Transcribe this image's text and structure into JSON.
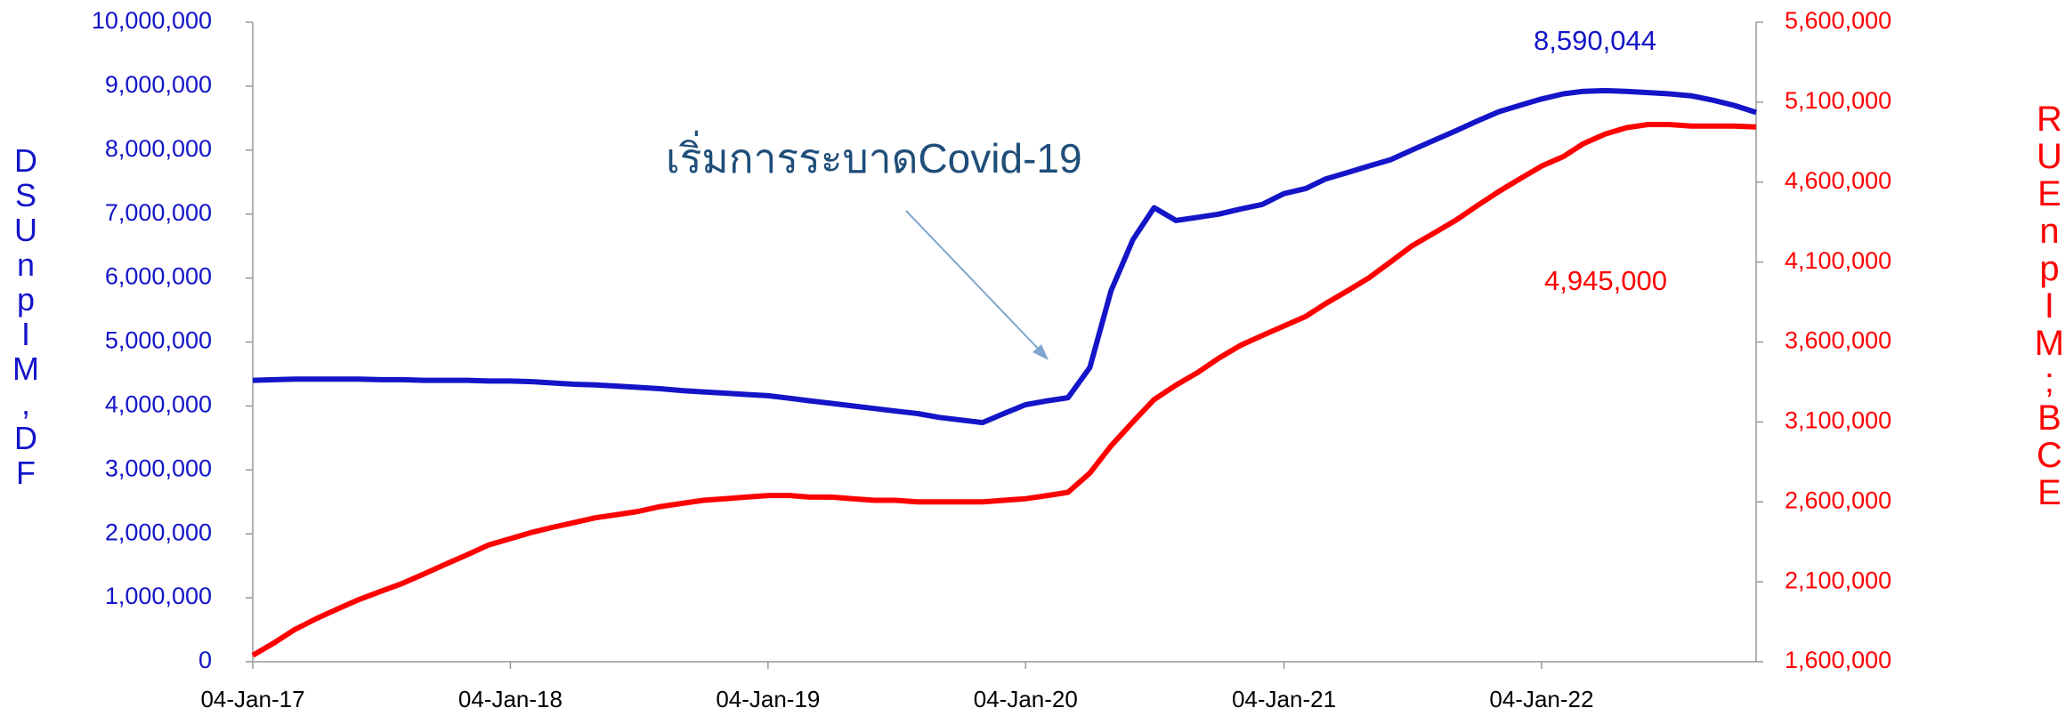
{
  "chart_data": {
    "type": "line",
    "annotation": "เริ่มการระบาดCovid-19",
    "ylabel": "DSUnpIM,DF",
    "y2label": "RUEnpIM;BCE",
    "x": [
      "04-Jan-17",
      "04-Feb-17",
      "04-Mar-17",
      "04-Apr-17",
      "04-May-17",
      "04-Jun-17",
      "04-Jul-17",
      "04-Aug-17",
      "04-Sep-17",
      "04-Oct-17",
      "04-Nov-17",
      "04-Dec-17",
      "04-Jan-18",
      "04-Feb-18",
      "04-Mar-18",
      "04-Apr-18",
      "04-May-18",
      "04-Jun-18",
      "04-Jul-18",
      "04-Aug-18",
      "04-Sep-18",
      "04-Oct-18",
      "04-Nov-18",
      "04-Dec-18",
      "04-Jan-19",
      "04-Feb-19",
      "04-Mar-19",
      "04-Apr-19",
      "04-May-19",
      "04-Jun-19",
      "04-Jul-19",
      "04-Aug-19",
      "04-Sep-19",
      "04-Oct-19",
      "04-Nov-19",
      "04-Dec-19",
      "04-Jan-20",
      "04-Feb-20",
      "04-Mar-20",
      "04-Apr-20",
      "04-May-20",
      "04-Jun-20",
      "04-Jul-20",
      "04-Aug-20",
      "04-Sep-20",
      "04-Oct-20",
      "04-Nov-20",
      "04-Dec-20",
      "04-Jan-21",
      "04-Feb-21",
      "04-Mar-21",
      "04-Apr-21",
      "04-May-21",
      "04-Jun-21",
      "04-Jul-21",
      "04-Aug-21",
      "04-Sep-21",
      "04-Oct-21",
      "04-Nov-21",
      "04-Dec-21",
      "04-Jan-22",
      "04-Feb-22",
      "04-Mar-22",
      "04-Apr-22",
      "04-May-22",
      "04-Jun-22",
      "04-Jul-22",
      "04-Aug-22",
      "04-Sep-22",
      "04-Oct-22",
      "04-Nov-22"
    ],
    "xlim": [
      "04-Jan-17",
      "04-Nov-22"
    ],
    "xticks": [
      "04-Jan-17",
      "04-Jan-18",
      "04-Jan-19",
      "04-Jan-20",
      "04-Jan-21",
      "04-Jan-22"
    ],
    "ylim": [
      0,
      10000000
    ],
    "yticks": [
      0,
      {
        "value": 1000000,
        "label": "1,000,000"
      },
      {
        "value": 2000000,
        "label": "2,000,000"
      },
      {
        "value": 3000000,
        "label": "3,000,000"
      },
      {
        "value": 4000000,
        "label": "4,000,000"
      },
      {
        "value": 5000000,
        "label": "5,000,000"
      },
      {
        "value": 6000000,
        "label": "6,000,000"
      },
      {
        "value": 7000000,
        "label": "7,000,000"
      },
      {
        "value": 8000000,
        "label": "8,000,000"
      },
      {
        "value": 9000000,
        "label": "9,000,000"
      },
      {
        "value": 10000000,
        "label": "10,000,000"
      }
    ],
    "y2lim": [
      1600000,
      5600000
    ],
    "y2ticks": [
      {
        "value": 1600000,
        "label": "1,600,000"
      },
      {
        "value": 2100000,
        "label": "2,100,000"
      },
      {
        "value": 2600000,
        "label": "2,600,000"
      },
      {
        "value": 3100000,
        "label": "3,100,000"
      },
      {
        "value": 3600000,
        "label": "3,600,000"
      },
      {
        "value": 4100000,
        "label": "4,100,000"
      },
      {
        "value": 4600000,
        "label": "4,600,000"
      },
      {
        "value": 5100000,
        "label": "5,100,000"
      },
      {
        "value": 5600000,
        "label": "5,600,000"
      }
    ],
    "series": [
      {
        "color": "#1414c8",
        "axis": "y",
        "end_label": "8,590,044",
        "values": [
          4400000,
          4410000,
          4420000,
          4420000,
          4420000,
          4420000,
          4410000,
          4410000,
          4400000,
          4400000,
          4400000,
          4390000,
          4390000,
          4380000,
          4360000,
          4340000,
          4330000,
          4310000,
          4290000,
          4270000,
          4240000,
          4220000,
          4200000,
          4180000,
          4160000,
          4120000,
          4080000,
          4040000,
          4000000,
          3960000,
          3920000,
          3880000,
          3820000,
          3780000,
          3740000,
          3880000,
          4020000,
          4080000,
          4130000,
          4600000,
          5800000,
          6600000,
          7100000,
          6900000,
          6950000,
          7000000,
          7080000,
          7150000,
          7320000,
          7400000,
          7550000,
          7650000,
          7750000,
          7850000,
          8000000,
          8150000,
          8300000,
          8450000,
          8600000,
          8700000,
          8800000,
          8880000,
          8920000,
          8930000,
          8920000,
          8900000,
          8880000,
          8850000,
          8780000,
          8700000,
          8590044
        ]
      },
      {
        "color": "#ff0000",
        "axis": "y2",
        "end_label": "4,945,000",
        "values": [
          1640000,
          1720000,
          1800000,
          1870000,
          1930000,
          1990000,
          2040000,
          2090000,
          2150000,
          2210000,
          2270000,
          2330000,
          2370000,
          2410000,
          2440000,
          2470000,
          2500000,
          2520000,
          2540000,
          2570000,
          2590000,
          2610000,
          2620000,
          2630000,
          2640000,
          2640000,
          2630000,
          2630000,
          2620000,
          2610000,
          2610000,
          2600000,
          2600000,
          2600000,
          2600000,
          2610000,
          2620000,
          2640000,
          2660000,
          2780000,
          2950000,
          3100000,
          3240000,
          3330000,
          3410000,
          3500000,
          3580000,
          3640000,
          3700000,
          3760000,
          3840000,
          3920000,
          4000000,
          4100000,
          4200000,
          4280000,
          4360000,
          4450000,
          4540000,
          4620000,
          4700000,
          4760000,
          4840000,
          4900000,
          4940000,
          4960000,
          4960000,
          4950000,
          4950000,
          4950000,
          4945000
        ]
      }
    ]
  }
}
